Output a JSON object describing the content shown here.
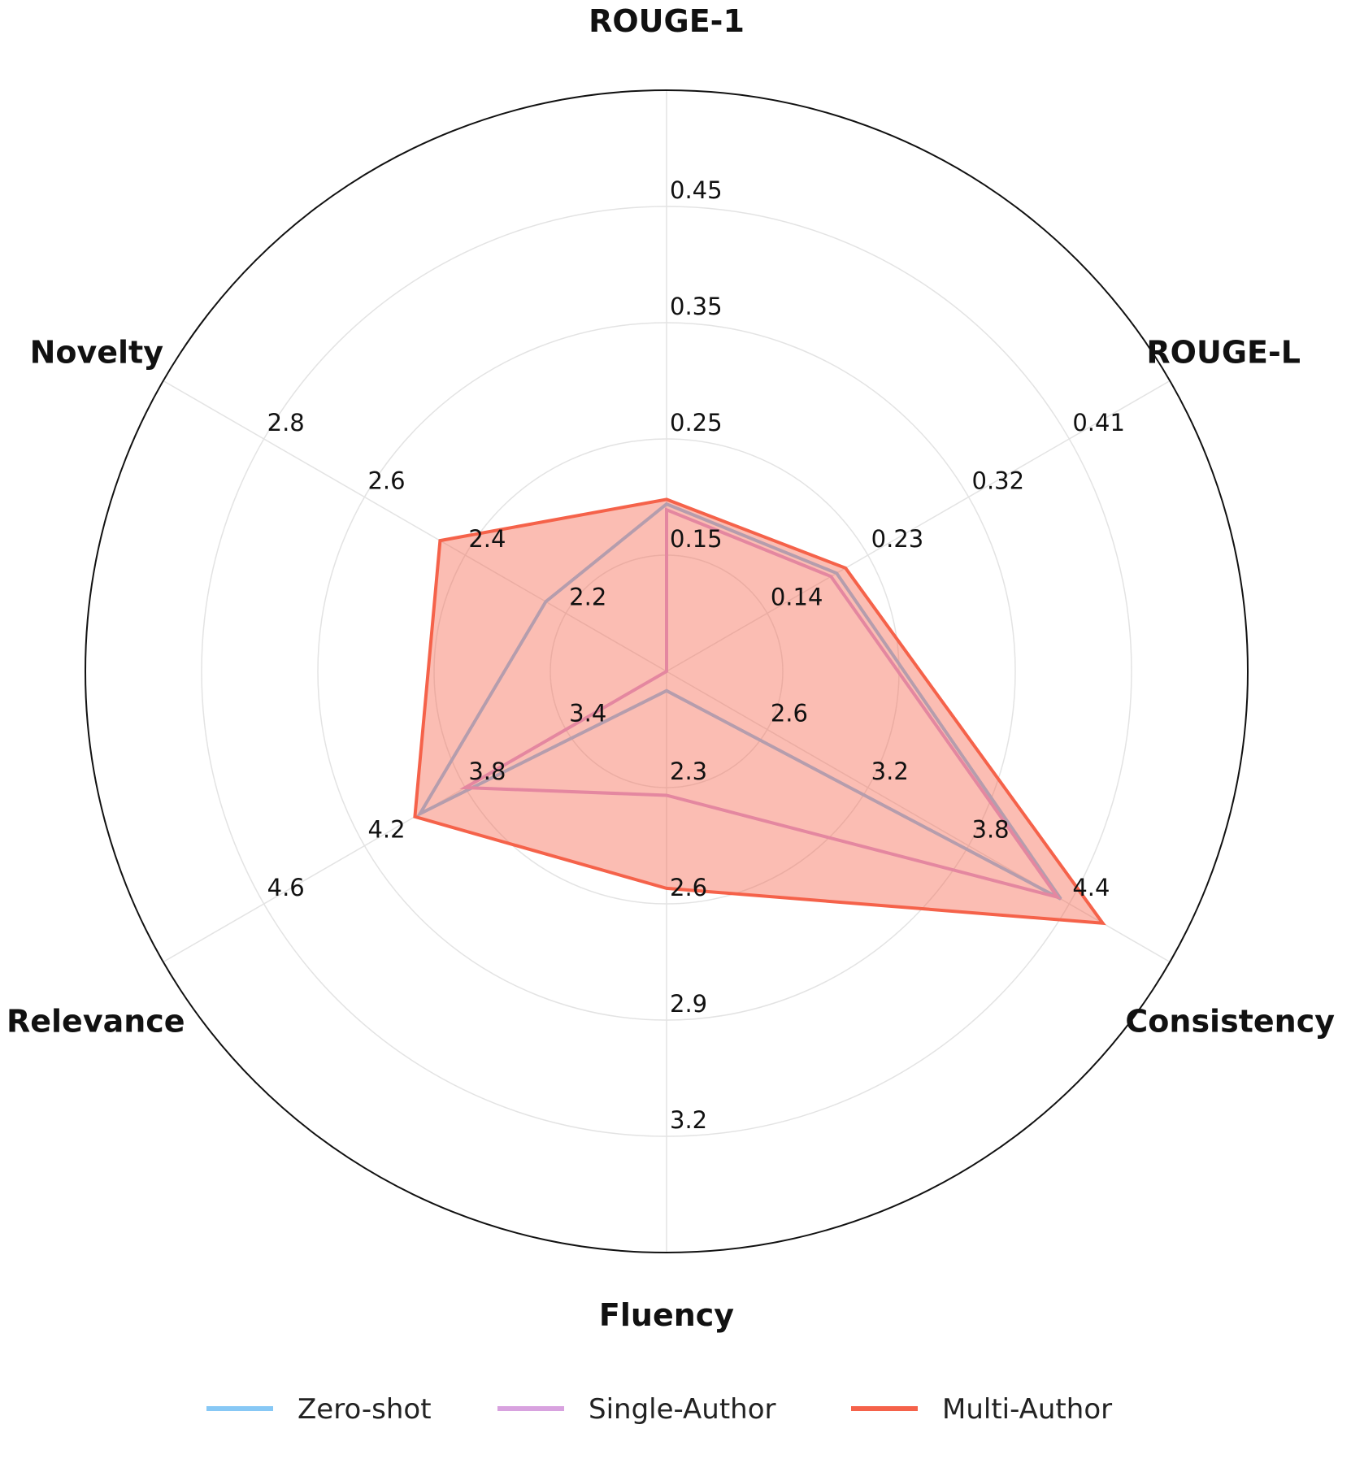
{
  "chart_data": {
    "type": "radar",
    "title": "",
    "axes": [
      {
        "name": "ROUGE-1",
        "ticks": [
          "0.15",
          "0.25",
          "0.35",
          "0.45"
        ],
        "range": [
          0.05,
          0.55
        ]
      },
      {
        "name": "ROUGE-L",
        "ticks": [
          "0.14",
          "0.23",
          "0.32",
          "0.41"
        ],
        "range": [
          0.05,
          0.5
        ]
      },
      {
        "name": "Consistency",
        "ticks": [
          "2.6",
          "3.2",
          "3.8",
          "4.4"
        ],
        "range": [
          2.0,
          5.0
        ]
      },
      {
        "name": "Fluency",
        "ticks": [
          "2.3",
          "2.6",
          "2.9",
          "3.2"
        ],
        "range": [
          2.0,
          3.5
        ]
      },
      {
        "name": "Relevance",
        "ticks": [
          "3.4",
          "3.8",
          "4.2",
          "4.6"
        ],
        "range": [
          3.0,
          5.0
        ]
      },
      {
        "name": "Novelty",
        "ticks": [
          "2.2",
          "2.4",
          "2.6",
          "2.8"
        ],
        "range": [
          2.0,
          3.0
        ]
      }
    ],
    "series": [
      {
        "name": "Zero-shot",
        "color": "#87c8f5",
        "fill": false,
        "values": [
          0.194,
          0.202,
          4.35,
          2.05,
          3.98,
          2.24
        ]
      },
      {
        "name": "Single-Author",
        "color": "#d8a2df",
        "fill": false,
        "values": [
          0.189,
          0.197,
          4.33,
          2.32,
          3.8,
          2.0
        ]
      },
      {
        "name": "Multi-Author",
        "color": "#f5624a",
        "fill": true,
        "fill_color": "#f5624a",
        "fill_opacity": 0.42,
        "values": [
          0.198,
          0.21,
          4.6,
          2.56,
          4.0,
          2.45
        ]
      }
    ],
    "grid": true,
    "legend_position": "bottom"
  }
}
